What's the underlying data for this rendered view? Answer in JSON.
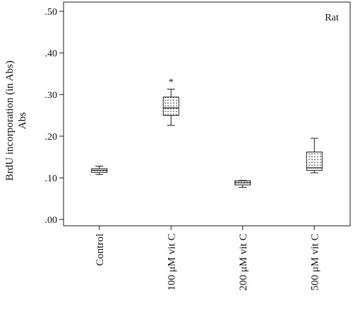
{
  "chart_data": {
    "type": "box",
    "annotation": "Rat",
    "ylabel_line1": "BrdU incorporation (in Abs)",
    "ylabel_line2": "Abs",
    "xlabel": "",
    "ylim": [
      0,
      0.5
    ],
    "yticks": [
      0,
      0.1,
      0.2,
      0.3,
      0.4,
      0.5
    ],
    "ytick_labels": [
      ".00",
      ".10",
      ".20",
      ".30",
      ".40",
      ".50"
    ],
    "grid": false,
    "categories": [
      "Control",
      "100 μM vit C",
      "200 μM vit C",
      "500 μM vit C"
    ],
    "boxes": [
      {
        "min": 0.108,
        "q1": 0.113,
        "median": 0.118,
        "q3": 0.122,
        "max": 0.128,
        "significance": ""
      },
      {
        "min": 0.226,
        "q1": 0.25,
        "median": 0.268,
        "q3": 0.294,
        "max": 0.313,
        "significance": "*"
      },
      {
        "min": 0.077,
        "q1": 0.083,
        "median": 0.088,
        "q3": 0.093,
        "max": 0.094,
        "significance": ""
      },
      {
        "min": 0.112,
        "q1": 0.118,
        "median": 0.124,
        "q3": 0.162,
        "max": 0.195,
        "significance": ""
      }
    ],
    "box_color": "#ffffff",
    "box_pattern": "dotted"
  }
}
